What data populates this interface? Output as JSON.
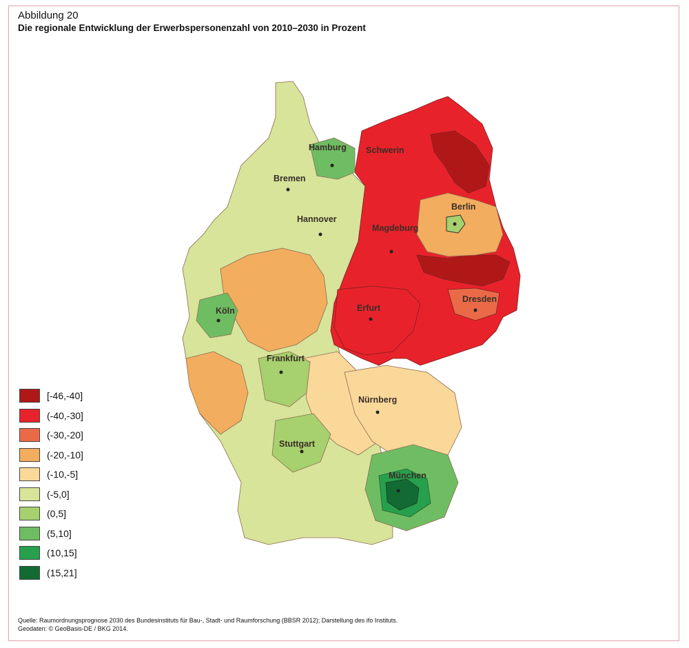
{
  "header": {
    "label": "Abbildung 20",
    "title": "Die regionale Entwicklung der Erwerbspersonenzahl von 2010–2030 in Prozent"
  },
  "legend": [
    {
      "label": "[-46,-40]",
      "color": "#b01818"
    },
    {
      "label": "(-40,-30]",
      "color": "#e8222b"
    },
    {
      "label": "(-30,-20]",
      "color": "#ea6a48"
    },
    {
      "label": "(-20,-10]",
      "color": "#f2ad5f"
    },
    {
      "label": "(-10,-5]",
      "color": "#f9d89a"
    },
    {
      "label": "(-5,0]",
      "color": "#d7e49a"
    },
    {
      "label": "(0,5]",
      "color": "#a7d06e"
    },
    {
      "label": "(5,10]",
      "color": "#6fbd63"
    },
    {
      "label": "(10,15]",
      "color": "#27a04d"
    },
    {
      "label": "(15,21]",
      "color": "#136b34"
    }
  ],
  "cities": {
    "hamburg": "Hamburg",
    "schwerin": "Schwerin",
    "bremen": "Bremen",
    "berlin": "Berlin",
    "hannover": "Hannover",
    "magdeburg": "Magdeburg",
    "koeln": "Köln",
    "dresden": "Dresden",
    "erfurt": "Erfurt",
    "frankfurt": "Frankfurt",
    "nuernberg": "Nürnberg",
    "stuttgart": "Stuttgart",
    "muenchen": "München"
  },
  "source": {
    "line1": "Quelle: Raumordnungsprognose 2030 des Bundesinstituts für Bau-, Stadt- und Raumforschung (BBSR 2012); Darstellung des ifo Instituts.",
    "line2": "Geodaten: © GeoBasis-DE / BKG 2014."
  }
}
